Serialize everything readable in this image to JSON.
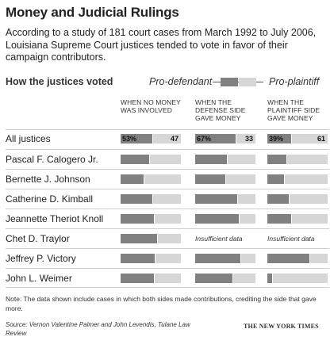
{
  "title": "Money and Judicial Rulings",
  "subtitle": "According to a study of 181 court cases from March 1992 to July 2006, Louisiana Supreme Court justices tended to vote in favor of their campaign contributors.",
  "legend": {
    "heading": "How the justices voted",
    "defendant": "Pro-defendant",
    "plaintiff": "Pro-plaintiff"
  },
  "note": "Note: The data shown include cases in which both sides made contributions, crediting the side that gave more.",
  "source": "Source: Vernon Valentine Palmer and John Levendis, Tulane Law Review",
  "credit": "THE NEW YORK TIMES",
  "chart_data": {
    "type": "bar",
    "orientation": "horizontal-stacked",
    "columns": [
      "WHEN NO MONEY WAS INVOLVED",
      "WHEN THE DEFENSE SIDE GAVE MONEY",
      "WHEN THE PLAINTIFF SIDE GAVE MONEY"
    ],
    "series": [
      {
        "name": "Pro-defendant",
        "color": "#808080"
      },
      {
        "name": "Pro-plaintiff",
        "color": "#d6d6d6"
      }
    ],
    "insufficient_label": "Insufficient data",
    "rows": [
      {
        "label": "All justices",
        "values": [
          53,
          67,
          39
        ],
        "labels": [
          [
            "53%",
            "47"
          ],
          [
            "67%",
            "33"
          ],
          [
            "39%",
            "61"
          ]
        ]
      },
      {
        "label": "Pascal F. Calogero Jr.",
        "values": [
          48,
          52,
          32
        ],
        "labels": null
      },
      {
        "label": "Bernette J. Johnson",
        "values": [
          38,
          50,
          28
        ],
        "labels": null
      },
      {
        "label": "Catherine D. Kimball",
        "values": [
          52,
          70,
          35
        ],
        "labels": null
      },
      {
        "label": "Jeannette Theriot Knoll",
        "values": [
          55,
          72,
          40
        ],
        "labels": null
      },
      {
        "label": "Chet D. Traylor",
        "values": [
          60,
          null,
          null
        ],
        "labels": null
      },
      {
        "label": "Jeffrey P. Victory",
        "values": [
          57,
          75,
          70
        ],
        "labels": null
      },
      {
        "label": "John L. Weimer",
        "values": [
          55,
          62,
          8
        ],
        "labels": null
      }
    ],
    "xlim": [
      0,
      100
    ]
  }
}
